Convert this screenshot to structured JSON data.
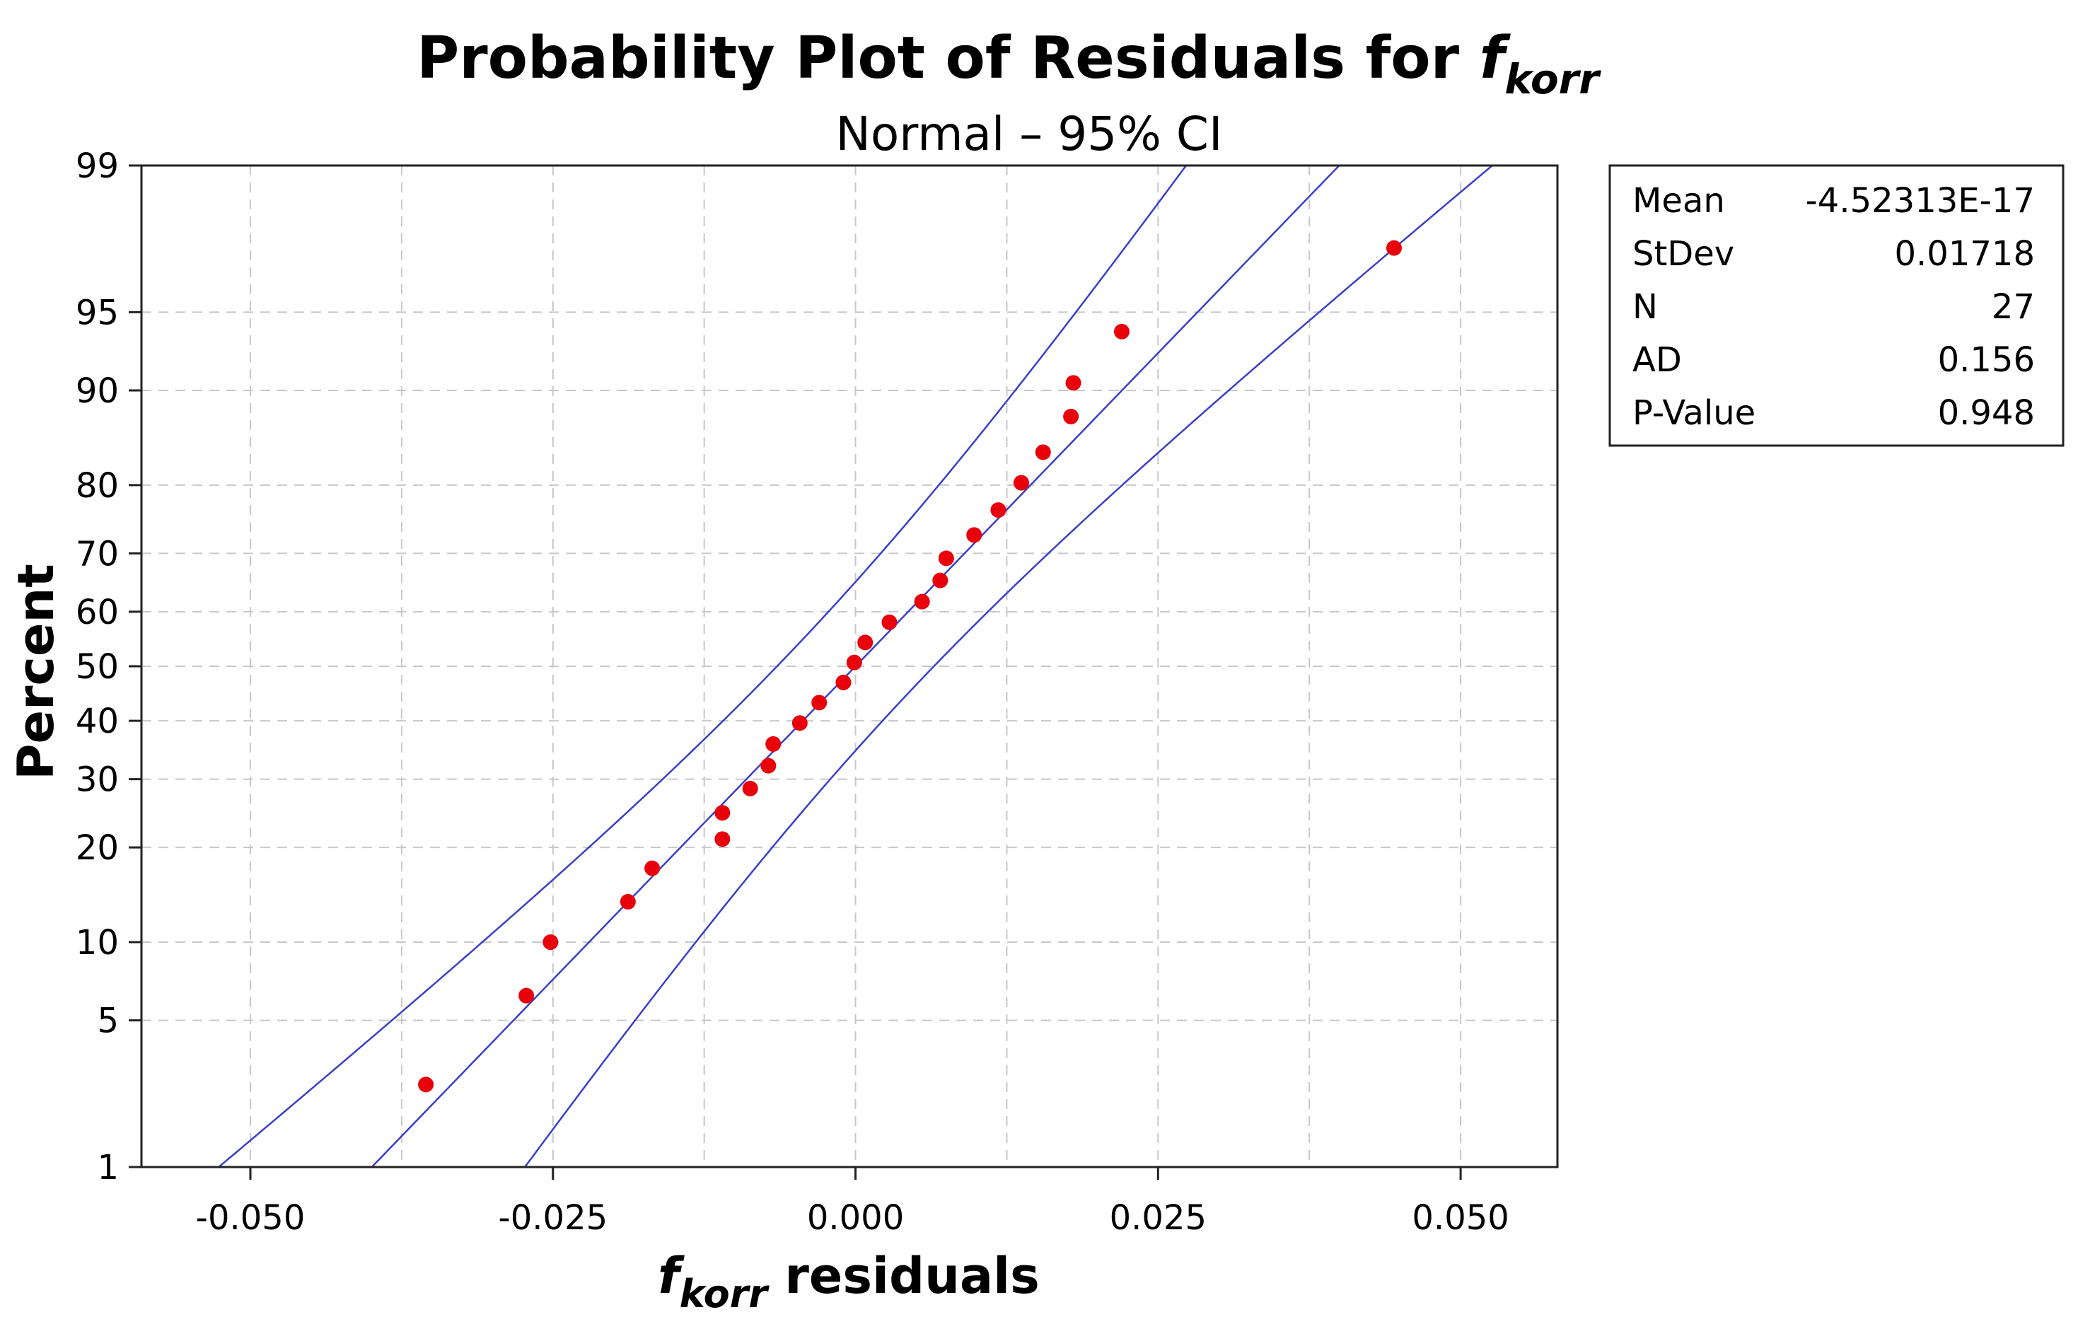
{
  "chart_data": {
    "type": "scatter",
    "title_main": "Probability Plot of Residuals for ",
    "title_var": "f",
    "title_sub": "korr",
    "subtitle": "Normal – 95% CI",
    "xlabel_var": "f",
    "xlabel_sub": "korr",
    "xlabel_rest": " residuals",
    "ylabel": "Percent",
    "xlim": [
      -0.059,
      0.058
    ],
    "ylim_percent": [
      1,
      99
    ],
    "x_ticks": [
      -0.05,
      -0.025,
      0.0,
      0.025,
      0.05
    ],
    "x_tick_labels": [
      "-0.050",
      "-0.025",
      "0.000",
      "0.025",
      "0.050"
    ],
    "y_ticks": [
      1,
      5,
      10,
      20,
      30,
      40,
      50,
      60,
      70,
      80,
      90,
      95,
      99
    ],
    "y_tick_labels": [
      "1",
      "5",
      "10",
      "20",
      "30",
      "40",
      "50",
      "60",
      "70",
      "80",
      "90",
      "95",
      "99"
    ],
    "grid": true,
    "fit": {
      "mean": 0.0,
      "stdev": 0.01718,
      "n": 27,
      "ci_level": 0.95
    },
    "series": [
      {
        "name": "residuals",
        "color": "#e8000b",
        "points": [
          {
            "x": -0.0355,
            "p": 2.6
          },
          {
            "x": -0.0272,
            "p": 6.3
          },
          {
            "x": -0.0252,
            "p": 10.0
          },
          {
            "x": -0.0188,
            "p": 13.7
          },
          {
            "x": -0.0168,
            "p": 17.4
          },
          {
            "x": -0.011,
            "p": 21.1
          },
          {
            "x": -0.011,
            "p": 24.8
          },
          {
            "x": -0.0087,
            "p": 28.5
          },
          {
            "x": -0.0072,
            "p": 32.2
          },
          {
            "x": -0.0068,
            "p": 35.9
          },
          {
            "x": -0.0046,
            "p": 39.6
          },
          {
            "x": -0.003,
            "p": 43.3
          },
          {
            "x": -0.001,
            "p": 47.0
          },
          {
            "x": -0.0001,
            "p": 50.7
          },
          {
            "x": 0.0008,
            "p": 54.4
          },
          {
            "x": 0.0028,
            "p": 58.1
          },
          {
            "x": 0.0055,
            "p": 61.8
          },
          {
            "x": 0.007,
            "p": 65.5
          },
          {
            "x": 0.0075,
            "p": 69.2
          },
          {
            "x": 0.0098,
            "p": 72.9
          },
          {
            "x": 0.0118,
            "p": 76.6
          },
          {
            "x": 0.0137,
            "p": 80.3
          },
          {
            "x": 0.0155,
            "p": 84.0
          },
          {
            "x": 0.0178,
            "p": 87.7
          },
          {
            "x": 0.018,
            "p": 90.6
          },
          {
            "x": 0.022,
            "p": 94.0
          },
          {
            "x": 0.0445,
            "p": 97.4
          }
        ]
      }
    ],
    "stats_box": [
      {
        "label": "Mean",
        "value": "-4.52313E-17"
      },
      {
        "label": "StDev",
        "value": "0.01718"
      },
      {
        "label": "N",
        "value": "27"
      },
      {
        "label": "AD",
        "value": "0.156"
      },
      {
        "label": "P-Value",
        "value": "0.948"
      }
    ],
    "colors": {
      "points": "#e8000b",
      "lines": "#3a3fc8",
      "grid": "#c8c8c8",
      "frame": "#222222"
    }
  }
}
